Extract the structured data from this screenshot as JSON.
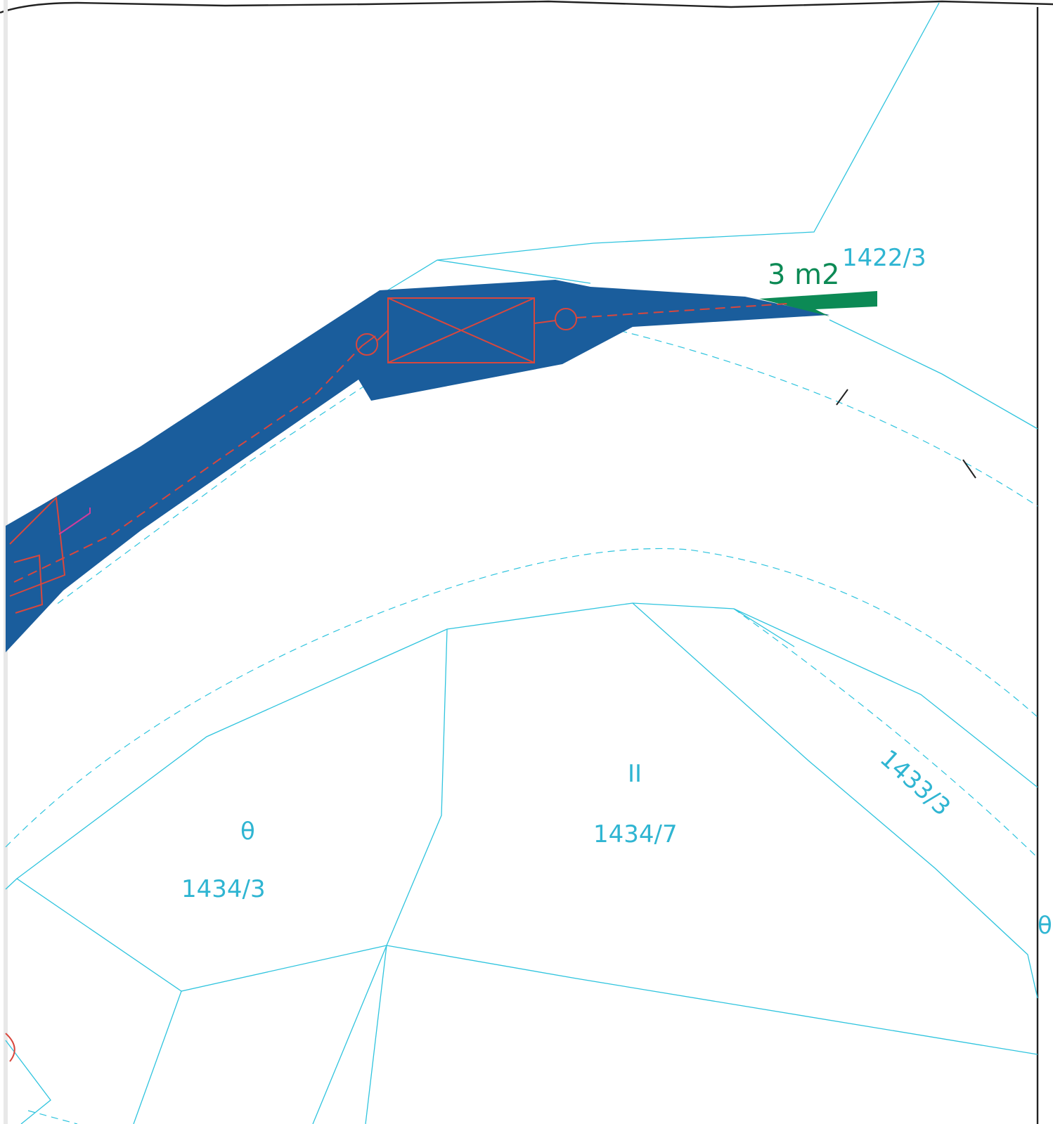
{
  "colors": {
    "parcel_line": "#2fc4de",
    "easement_fill": "#1a5d9c",
    "utility_line": "#d9473d",
    "area_highlight": "#0c8a55",
    "magenta_line": "#d23c9b"
  },
  "area_label": {
    "value": "3 m2",
    "superscript": "1422/3"
  },
  "parcels": [
    {
      "number": "1434/3",
      "symbol": "θ"
    },
    {
      "number": "1434/7",
      "symbol": "II"
    },
    {
      "number": "1433/3",
      "symbol": ""
    }
  ],
  "edge_symbol": "θ"
}
